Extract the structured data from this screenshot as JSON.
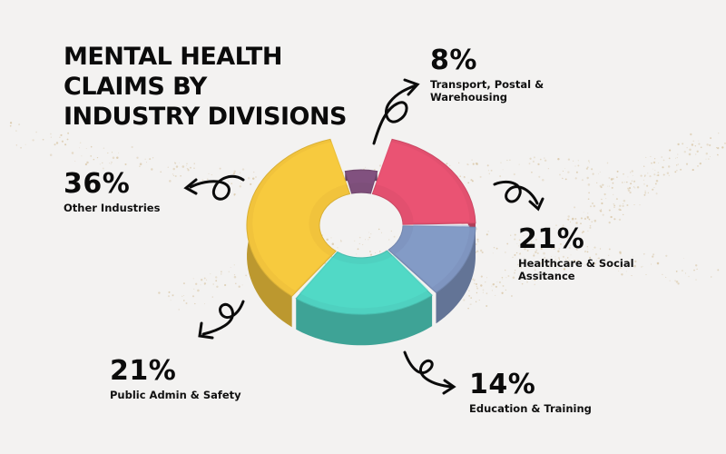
{
  "title": "MENTAL HEALTH\nCLAIMS BY\nINDUSTRY DIVISIONS",
  "chart_data": {
    "type": "pie",
    "style": "3d-donut",
    "title": "MENTAL HEALTH CLAIMS BY INDUSTRY DIVISIONS",
    "slices": [
      {
        "label": "Transport, Postal & Warehousing",
        "value": 8,
        "value_label": "8%",
        "color": "#7d4f7a"
      },
      {
        "label": "Healthcare & Social Assitance",
        "value": 21,
        "value_label": "21%",
        "color": "#e2506f"
      },
      {
        "label": "Education & Training",
        "value": 14,
        "value_label": "14%",
        "color": "#7f95c0"
      },
      {
        "label": "Public Admin & Safety",
        "value": 21,
        "value_label": "21%",
        "color": "#4fd1c0"
      },
      {
        "label": "Other Industries",
        "value": 36,
        "value_label": "36%",
        "color": "#f1c33c"
      }
    ]
  },
  "colors": {
    "background": "#f3f2f1",
    "text": "#0b0b0b",
    "glitter": "#d8c6a6"
  }
}
